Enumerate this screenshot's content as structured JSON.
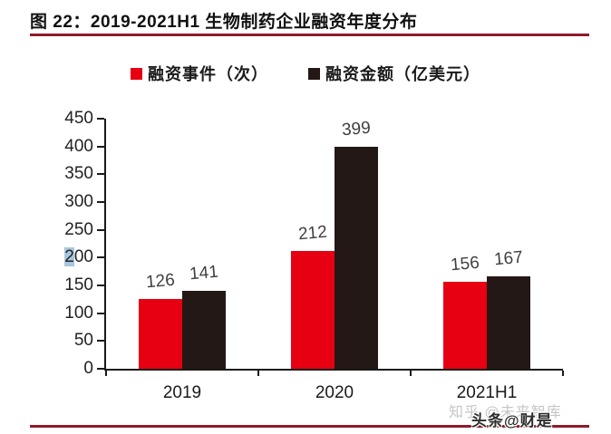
{
  "page": {
    "title": "图 22：2019-2021H1 生物制药企业融资年度分布",
    "accent_line_color": "#8e1b2b"
  },
  "legend": {
    "items": [
      {
        "label": "融资事件（次）",
        "color": "#e60012"
      },
      {
        "label": "融资金额（亿美元）",
        "color": "#231815"
      }
    ]
  },
  "chart_data": {
    "type": "bar",
    "title": "图 22：2019-2021H1 生物制药企业融资年度分布",
    "categories": [
      "2019",
      "2020",
      "2021H1"
    ],
    "series": [
      {
        "name": "融资事件（次）",
        "color": "#e60012",
        "values": [
          126,
          212,
          156
        ]
      },
      {
        "name": "融资金额（亿美元）",
        "color": "#231815",
        "values": [
          141,
          399,
          167
        ]
      }
    ],
    "ylim": [
      0,
      450
    ],
    "yticks": [
      0,
      50,
      100,
      150,
      200,
      250,
      300,
      350,
      400,
      450
    ],
    "grid": false,
    "legend_position": "top-center",
    "data_labels": true
  },
  "selection_artifact": {
    "tick_label": "200",
    "selected_chars": 1,
    "highlight_color": "#a9c6dc"
  },
  "watermarks": {
    "zhihu": "知乎 @未来智库",
    "toutiao": "头条@财是"
  }
}
